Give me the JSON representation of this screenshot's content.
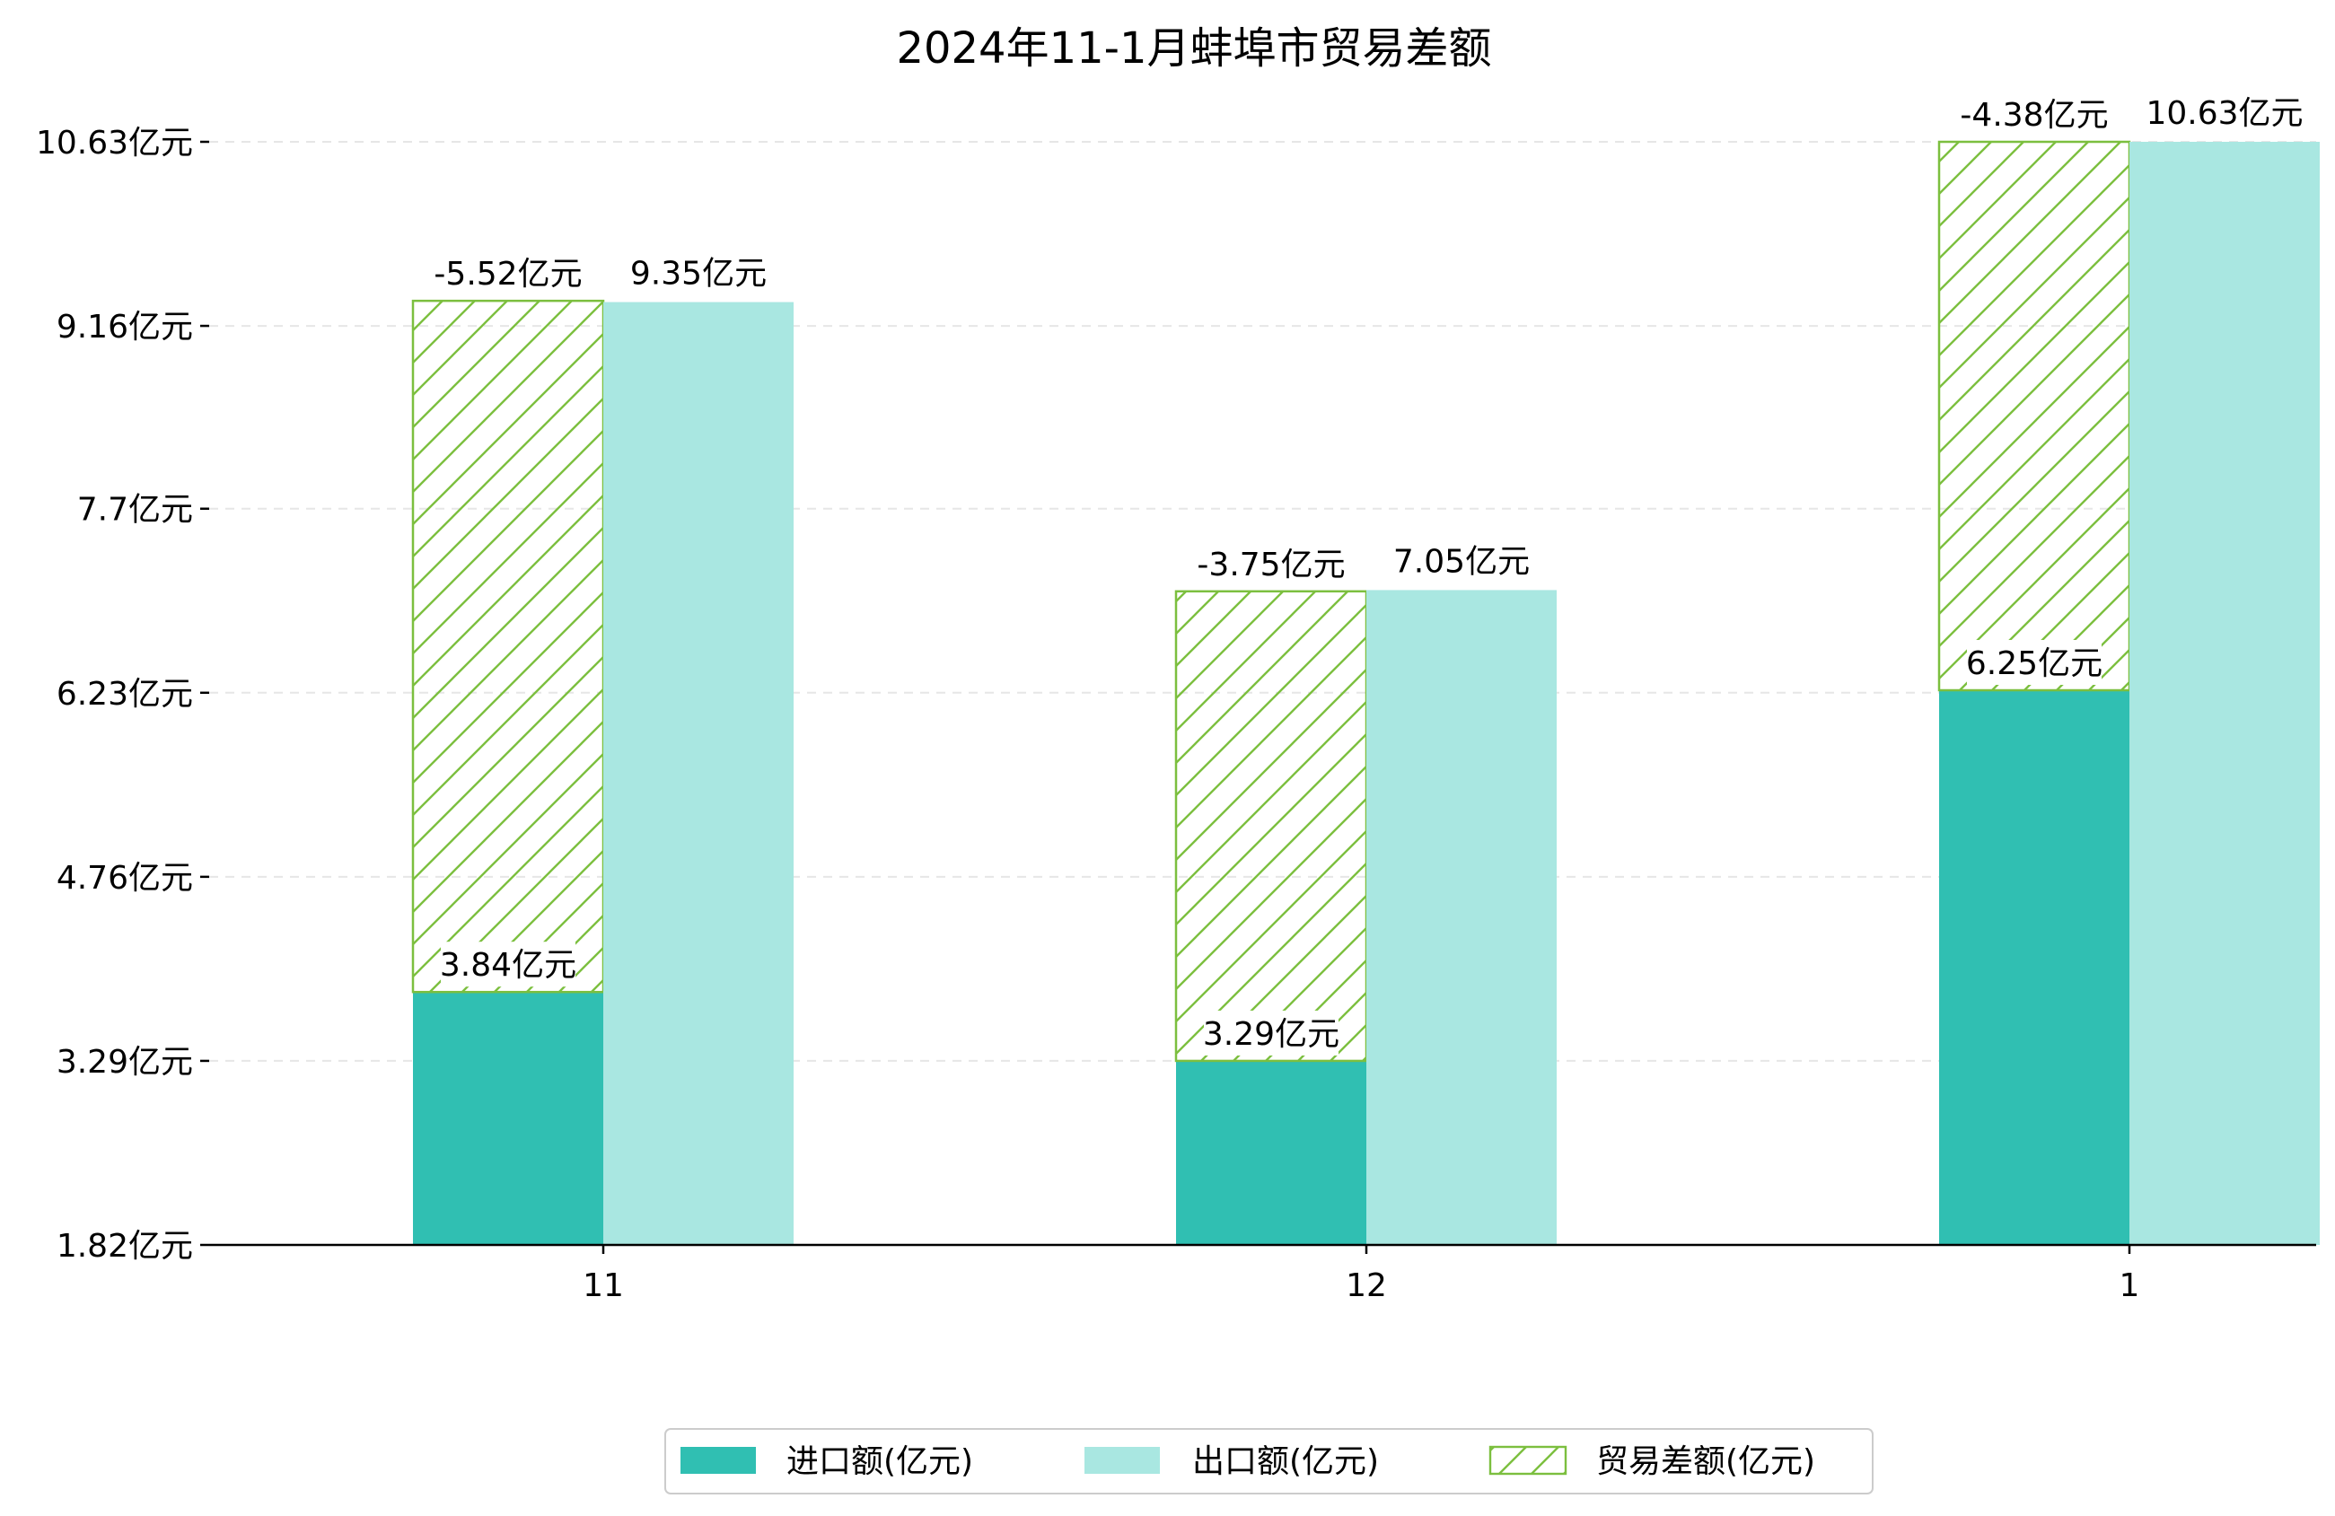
{
  "chart_data": {
    "type": "bar",
    "title": "2024年11-1月蚌埠市贸易差额",
    "categories": [
      "11",
      "12",
      "1"
    ],
    "ylim": [
      1.82,
      10.63
    ],
    "yticks": [
      1.82,
      3.29,
      4.76,
      6.23,
      7.7,
      9.16,
      10.63
    ],
    "ytick_labels": [
      "1.82亿元",
      "3.29亿元",
      "4.76亿元",
      "6.23亿元",
      "7.7亿元",
      "9.16亿元",
      "10.63亿元"
    ],
    "grid": true,
    "legend_position": "bottom-center",
    "series": [
      {
        "name": "进口额(亿元)",
        "color": "#30bfb2",
        "values": [
          3.84,
          3.29,
          6.25
        ],
        "labels": [
          "3.84亿元",
          "3.29亿元",
          "6.25亿元"
        ]
      },
      {
        "name": "出口额(亿元)",
        "color": "#a9e7e1",
        "values": [
          9.35,
          7.05,
          10.63
        ],
        "labels": [
          "9.35亿元",
          "7.05亿元",
          "10.63亿元"
        ]
      },
      {
        "name": "贸易差额(亿元)",
        "color": "#7cbf3f",
        "pattern": "hatch",
        "values": [
          -5.52,
          -3.75,
          -4.38
        ],
        "labels": [
          "-5.52亿元",
          "-3.75亿元",
          "-4.38亿元"
        ]
      }
    ]
  }
}
